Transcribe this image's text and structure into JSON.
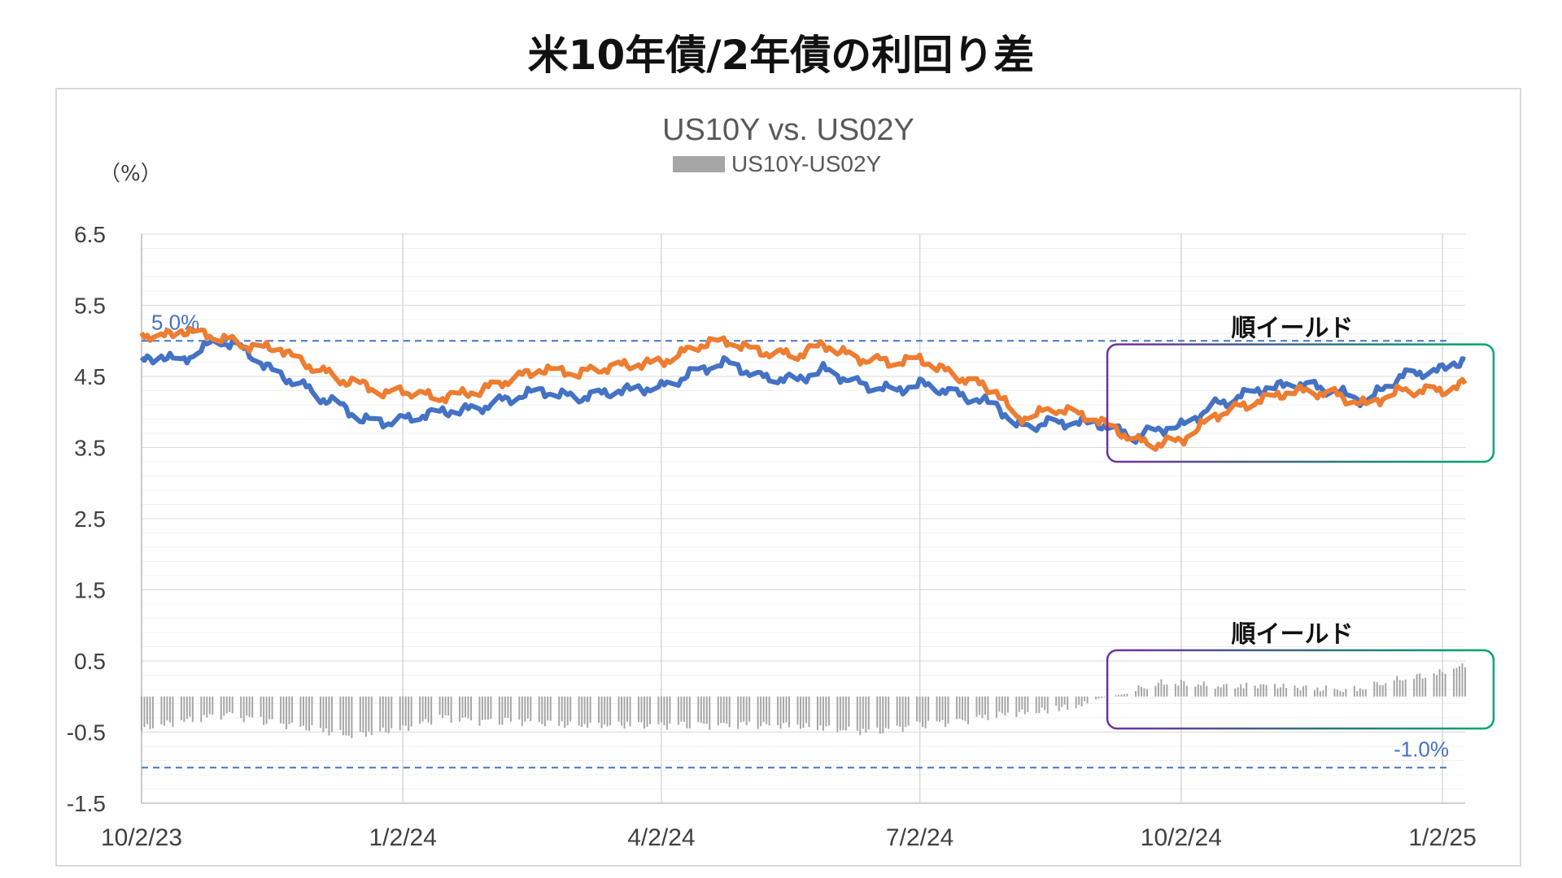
{
  "page": {
    "title": "米10年債/2年債の利回り差"
  },
  "chart_data": {
    "type": "line",
    "title": "US10Y vs. US02Y",
    "unit_label": "（%）",
    "legend": [
      {
        "name": "US10Y-US02Y",
        "color": "#a6a6a6"
      }
    ],
    "ylim": [
      -1.5,
      6.5
    ],
    "y_ticks": [
      "6.5",
      "5.5",
      "4.5",
      "3.5",
      "2.5",
      "1.5",
      "0.5",
      "-0.5",
      "-1.5"
    ],
    "y_tick_values": [
      6.5,
      5.5,
      4.5,
      3.5,
      2.5,
      1.5,
      0.5,
      -0.5,
      -1.5
    ],
    "x_start": "2023-10-02",
    "x_end": "2025-01-10",
    "x_ticks": [
      {
        "label": "10/2/23",
        "date": "2023-10-02"
      },
      {
        "label": "1/2/24",
        "date": "2024-01-02"
      },
      {
        "label": "4/2/24",
        "date": "2024-04-02"
      },
      {
        "label": "7/2/24",
        "date": "2024-07-02"
      },
      {
        "label": "10/2/24",
        "date": "2024-10-02"
      },
      {
        "label": "1/2/25",
        "date": "2025-01-02"
      }
    ],
    "series": [
      {
        "key": "us10y",
        "color": "#4472c4",
        "points": [
          [
            "2023-10-02",
            4.7
          ],
          [
            "2023-10-09",
            4.8
          ],
          [
            "2023-10-16",
            4.7
          ],
          [
            "2023-10-23",
            4.9
          ],
          [
            "2023-10-30",
            5.0
          ],
          [
            "2023-11-06",
            4.9
          ],
          [
            "2023-11-13",
            4.7
          ],
          [
            "2023-11-20",
            4.5
          ],
          [
            "2023-11-27",
            4.4
          ],
          [
            "2023-12-04",
            4.2
          ],
          [
            "2023-12-11",
            4.1
          ],
          [
            "2023-12-18",
            3.9
          ],
          [
            "2023-12-27",
            3.85
          ],
          [
            "2024-01-02",
            3.9
          ],
          [
            "2024-01-15",
            4.0
          ],
          [
            "2024-01-29",
            4.05
          ],
          [
            "2024-02-05",
            4.15
          ],
          [
            "2024-02-19",
            4.3
          ],
          [
            "2024-03-04",
            4.2
          ],
          [
            "2024-03-18",
            4.3
          ],
          [
            "2024-04-02",
            4.35
          ],
          [
            "2024-04-16",
            4.6
          ],
          [
            "2024-04-25",
            4.7
          ],
          [
            "2024-05-06",
            4.5
          ],
          [
            "2024-05-20",
            4.45
          ],
          [
            "2024-05-29",
            4.6
          ],
          [
            "2024-06-10",
            4.4
          ],
          [
            "2024-06-24",
            4.3
          ],
          [
            "2024-07-02",
            4.4
          ],
          [
            "2024-07-15",
            4.25
          ],
          [
            "2024-07-29",
            4.1
          ],
          [
            "2024-08-05",
            3.8
          ],
          [
            "2024-08-19",
            3.85
          ],
          [
            "2024-09-02",
            3.85
          ],
          [
            "2024-09-16",
            3.65
          ],
          [
            "2024-09-23",
            3.75
          ],
          [
            "2024-10-02",
            3.8
          ],
          [
            "2024-10-14",
            4.1
          ],
          [
            "2024-10-28",
            4.3
          ],
          [
            "2024-11-11",
            4.4
          ],
          [
            "2024-11-25",
            4.3
          ],
          [
            "2024-12-06",
            4.15
          ],
          [
            "2024-12-18",
            4.5
          ],
          [
            "2025-01-02",
            4.6
          ],
          [
            "2025-01-10",
            4.75
          ]
        ]
      },
      {
        "key": "us02y",
        "color": "#ed7d31",
        "points": [
          [
            "2023-10-02",
            5.1
          ],
          [
            "2023-10-09",
            5.05
          ],
          [
            "2023-10-16",
            5.15
          ],
          [
            "2023-10-23",
            5.1
          ],
          [
            "2023-10-30",
            5.05
          ],
          [
            "2023-11-06",
            4.95
          ],
          [
            "2023-11-13",
            4.9
          ],
          [
            "2023-11-20",
            4.9
          ],
          [
            "2023-11-27",
            4.7
          ],
          [
            "2023-12-04",
            4.6
          ],
          [
            "2023-12-11",
            4.45
          ],
          [
            "2023-12-18",
            4.4
          ],
          [
            "2023-12-27",
            4.25
          ],
          [
            "2024-01-02",
            4.3
          ],
          [
            "2024-01-15",
            4.2
          ],
          [
            "2024-01-29",
            4.3
          ],
          [
            "2024-02-05",
            4.4
          ],
          [
            "2024-02-19",
            4.6
          ],
          [
            "2024-03-04",
            4.55
          ],
          [
            "2024-03-18",
            4.65
          ],
          [
            "2024-04-02",
            4.7
          ],
          [
            "2024-04-16",
            4.95
          ],
          [
            "2024-04-25",
            5.0
          ],
          [
            "2024-05-06",
            4.85
          ],
          [
            "2024-05-20",
            4.8
          ],
          [
            "2024-05-29",
            4.95
          ],
          [
            "2024-06-10",
            4.75
          ],
          [
            "2024-06-24",
            4.7
          ],
          [
            "2024-07-02",
            4.75
          ],
          [
            "2024-07-15",
            4.5
          ],
          [
            "2024-07-29",
            4.3
          ],
          [
            "2024-08-05",
            3.9
          ],
          [
            "2024-08-19",
            4.05
          ],
          [
            "2024-09-02",
            3.9
          ],
          [
            "2024-09-16",
            3.6
          ],
          [
            "2024-09-23",
            3.55
          ],
          [
            "2024-10-02",
            3.6
          ],
          [
            "2024-10-14",
            3.95
          ],
          [
            "2024-10-28",
            4.15
          ],
          [
            "2024-11-11",
            4.3
          ],
          [
            "2024-11-25",
            4.25
          ],
          [
            "2024-12-06",
            4.1
          ],
          [
            "2024-12-18",
            4.3
          ],
          [
            "2025-01-02",
            4.3
          ],
          [
            "2025-01-10",
            4.4
          ]
        ]
      }
    ],
    "spread_series": {
      "name": "US10Y-US02Y",
      "color": "#a6a6a6",
      "points": [
        [
          "2023-10-02",
          -0.4
        ],
        [
          "2023-10-16",
          -0.3
        ],
        [
          "2023-11-01",
          -0.2
        ],
        [
          "2023-11-15",
          -0.3
        ],
        [
          "2023-12-01",
          -0.4
        ],
        [
          "2023-12-15",
          -0.5
        ],
        [
          "2024-01-02",
          -0.4
        ],
        [
          "2024-01-15",
          -0.25
        ],
        [
          "2024-02-01",
          -0.3
        ],
        [
          "2024-02-15",
          -0.3
        ],
        [
          "2024-03-01",
          -0.35
        ],
        [
          "2024-03-15",
          -0.35
        ],
        [
          "2024-04-02",
          -0.35
        ],
        [
          "2024-04-15",
          -0.35
        ],
        [
          "2024-05-01",
          -0.35
        ],
        [
          "2024-05-15",
          -0.35
        ],
        [
          "2024-06-01",
          -0.4
        ],
        [
          "2024-06-15",
          -0.45
        ],
        [
          "2024-07-01",
          -0.35
        ],
        [
          "2024-07-15",
          -0.3
        ],
        [
          "2024-08-01",
          -0.2
        ],
        [
          "2024-08-15",
          -0.15
        ],
        [
          "2024-09-01",
          -0.05
        ],
        [
          "2024-09-06",
          0.0
        ],
        [
          "2024-09-15",
          0.05
        ],
        [
          "2024-09-25",
          0.15
        ],
        [
          "2024-10-02",
          0.15
        ],
        [
          "2024-10-15",
          0.1
        ],
        [
          "2024-11-01",
          0.12
        ],
        [
          "2024-11-15",
          0.08
        ],
        [
          "2024-12-01",
          0.05
        ],
        [
          "2024-12-15",
          0.18
        ],
        [
          "2025-01-02",
          0.3
        ],
        [
          "2025-01-10",
          0.4
        ]
      ]
    },
    "reference_lines": [
      {
        "value": 5.0,
        "label": "5.0%",
        "color": "#4472c4"
      },
      {
        "value": -1.0,
        "label": "-1.0%",
        "color": "#4472c4"
      }
    ],
    "annotations": [
      {
        "text": "順イールド",
        "x_from": "2024-09-06",
        "x_to": "2025-01-20",
        "y_from": 3.3,
        "y_to": 4.95
      },
      {
        "text": "順イールド",
        "x_from": "2024-09-06",
        "x_to": "2025-01-20",
        "y_from": -0.45,
        "y_to": 0.65
      }
    ],
    "annotation_box_colors": [
      "#7030a0",
      "#00a86b"
    ],
    "grid": true
  }
}
